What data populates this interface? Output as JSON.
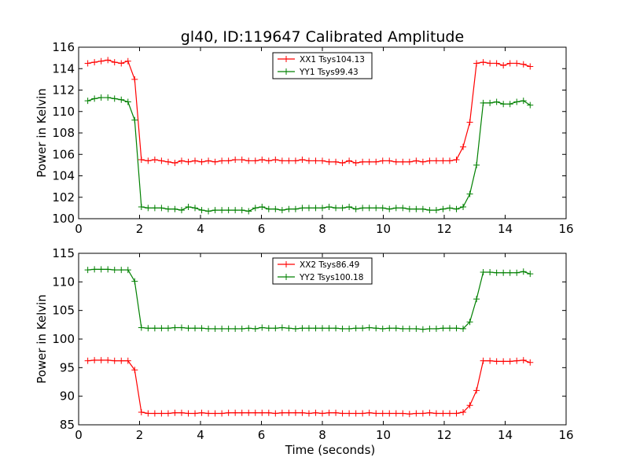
{
  "title": "gl40, ID:119647 Calibrated Amplitude",
  "colors": {
    "xx": "#ff0000",
    "yy": "#008000",
    "axes": "#000000",
    "background": "#ffffff"
  },
  "chart_data": [
    {
      "type": "line",
      "xlabel": "",
      "ylabel": "Power in Kelvin",
      "xlim": [
        0,
        16
      ],
      "ylim": [
        100,
        116
      ],
      "xticks": [
        0,
        2,
        4,
        6,
        8,
        10,
        12,
        14,
        16
      ],
      "yticks": [
        100,
        102,
        104,
        106,
        108,
        110,
        112,
        114,
        116
      ],
      "grid": false,
      "legend_position": "top-center",
      "x": [
        0.3,
        0.52,
        0.74,
        0.96,
        1.18,
        1.4,
        1.62,
        1.84,
        2.06,
        2.28,
        2.5,
        2.72,
        2.94,
        3.16,
        3.38,
        3.6,
        3.82,
        4.04,
        4.26,
        4.48,
        4.7,
        4.92,
        5.14,
        5.36,
        5.58,
        5.8,
        6.02,
        6.24,
        6.46,
        6.68,
        6.9,
        7.12,
        7.34,
        7.56,
        7.78,
        8.0,
        8.22,
        8.44,
        8.66,
        8.88,
        9.1,
        9.32,
        9.54,
        9.76,
        9.98,
        10.2,
        10.42,
        10.64,
        10.86,
        11.08,
        11.3,
        11.52,
        11.74,
        11.96,
        12.18,
        12.4,
        12.62,
        12.84,
        13.06,
        13.28,
        13.5,
        13.72,
        13.94,
        14.16,
        14.38,
        14.6,
        14.82
      ],
      "series": [
        {
          "name": "XX1 Tsys104.13",
          "color": "#ff0000",
          "values": [
            114.5,
            114.6,
            114.7,
            114.8,
            114.6,
            114.5,
            114.7,
            113.0,
            105.5,
            105.4,
            105.5,
            105.4,
            105.3,
            105.2,
            105.4,
            105.3,
            105.4,
            105.3,
            105.4,
            105.3,
            105.4,
            105.4,
            105.5,
            105.5,
            105.4,
            105.4,
            105.5,
            105.4,
            105.5,
            105.4,
            105.4,
            105.4,
            105.5,
            105.4,
            105.4,
            105.4,
            105.3,
            105.3,
            105.2,
            105.4,
            105.2,
            105.3,
            105.3,
            105.3,
            105.4,
            105.4,
            105.3,
            105.3,
            105.3,
            105.4,
            105.3,
            105.4,
            105.4,
            105.4,
            105.4,
            105.5,
            106.7,
            109.0,
            114.5,
            114.6,
            114.5,
            114.5,
            114.3,
            114.5,
            114.5,
            114.4,
            114.2
          ]
        },
        {
          "name": "YY1 Tsys99.43",
          "color": "#008000",
          "values": [
            111.0,
            111.2,
            111.3,
            111.3,
            111.2,
            111.1,
            110.9,
            109.2,
            101.1,
            101.0,
            101.0,
            101.0,
            100.9,
            100.9,
            100.8,
            101.1,
            101.0,
            100.8,
            100.7,
            100.8,
            100.8,
            100.8,
            100.8,
            100.8,
            100.7,
            101.0,
            101.1,
            100.9,
            100.9,
            100.8,
            100.9,
            100.9,
            101.0,
            101.0,
            101.0,
            101.0,
            101.1,
            101.0,
            101.0,
            101.1,
            100.9,
            101.0,
            101.0,
            101.0,
            101.0,
            100.9,
            101.0,
            101.0,
            100.9,
            100.9,
            100.9,
            100.8,
            100.8,
            100.9,
            101.0,
            100.9,
            101.1,
            102.3,
            105.0,
            110.8,
            110.8,
            110.9,
            110.7,
            110.7,
            110.9,
            111.0,
            110.6
          ]
        }
      ]
    },
    {
      "type": "line",
      "xlabel": "Time (seconds)",
      "ylabel": "Power in Kelvin",
      "xlim": [
        0,
        16
      ],
      "ylim": [
        85,
        115
      ],
      "xticks": [
        0,
        2,
        4,
        6,
        8,
        10,
        12,
        14,
        16
      ],
      "yticks": [
        85,
        90,
        95,
        100,
        105,
        110,
        115
      ],
      "grid": false,
      "legend_position": "top-center",
      "x": [
        0.3,
        0.52,
        0.74,
        0.96,
        1.18,
        1.4,
        1.62,
        1.84,
        2.06,
        2.28,
        2.5,
        2.72,
        2.94,
        3.16,
        3.38,
        3.6,
        3.82,
        4.04,
        4.26,
        4.48,
        4.7,
        4.92,
        5.14,
        5.36,
        5.58,
        5.8,
        6.02,
        6.24,
        6.46,
        6.68,
        6.9,
        7.12,
        7.34,
        7.56,
        7.78,
        8.0,
        8.22,
        8.44,
        8.66,
        8.88,
        9.1,
        9.32,
        9.54,
        9.76,
        9.98,
        10.2,
        10.42,
        10.64,
        10.86,
        11.08,
        11.3,
        11.52,
        11.74,
        11.96,
        12.18,
        12.4,
        12.62,
        12.84,
        13.06,
        13.28,
        13.5,
        13.72,
        13.94,
        14.16,
        14.38,
        14.6,
        14.82
      ],
      "series": [
        {
          "name": "XX2 Tsys86.49",
          "color": "#ff0000",
          "values": [
            96.2,
            96.3,
            96.3,
            96.3,
            96.2,
            96.2,
            96.2,
            94.6,
            87.2,
            87.0,
            87.0,
            87.0,
            87.0,
            87.1,
            87.1,
            87.0,
            87.0,
            87.1,
            87.0,
            87.0,
            87.0,
            87.1,
            87.1,
            87.1,
            87.1,
            87.1,
            87.1,
            87.1,
            87.0,
            87.1,
            87.1,
            87.1,
            87.1,
            87.0,
            87.1,
            87.0,
            87.1,
            87.1,
            87.0,
            87.0,
            87.0,
            87.0,
            87.1,
            87.0,
            87.0,
            87.0,
            87.0,
            87.0,
            86.9,
            87.0,
            87.0,
            87.1,
            87.0,
            87.0,
            87.0,
            87.0,
            87.2,
            88.4,
            91.0,
            96.2,
            96.2,
            96.1,
            96.1,
            96.1,
            96.2,
            96.3,
            95.9
          ]
        },
        {
          "name": "YY2 Tsys100.18",
          "color": "#008000",
          "values": [
            112.1,
            112.2,
            112.2,
            112.2,
            112.1,
            112.1,
            112.1,
            110.1,
            102.0,
            101.9,
            101.9,
            101.9,
            101.9,
            102.0,
            102.0,
            101.9,
            101.9,
            101.9,
            101.8,
            101.8,
            101.8,
            101.8,
            101.8,
            101.8,
            101.9,
            101.8,
            102.0,
            101.9,
            101.9,
            102.0,
            101.9,
            101.8,
            101.9,
            101.9,
            101.9,
            101.9,
            101.9,
            101.9,
            101.8,
            101.8,
            101.9,
            101.9,
            102.0,
            101.9,
            101.8,
            101.9,
            101.9,
            101.8,
            101.8,
            101.8,
            101.7,
            101.8,
            101.8,
            101.9,
            101.9,
            101.9,
            101.8,
            103.0,
            107.0,
            111.7,
            111.7,
            111.6,
            111.6,
            111.6,
            111.6,
            111.8,
            111.4
          ]
        }
      ]
    }
  ]
}
